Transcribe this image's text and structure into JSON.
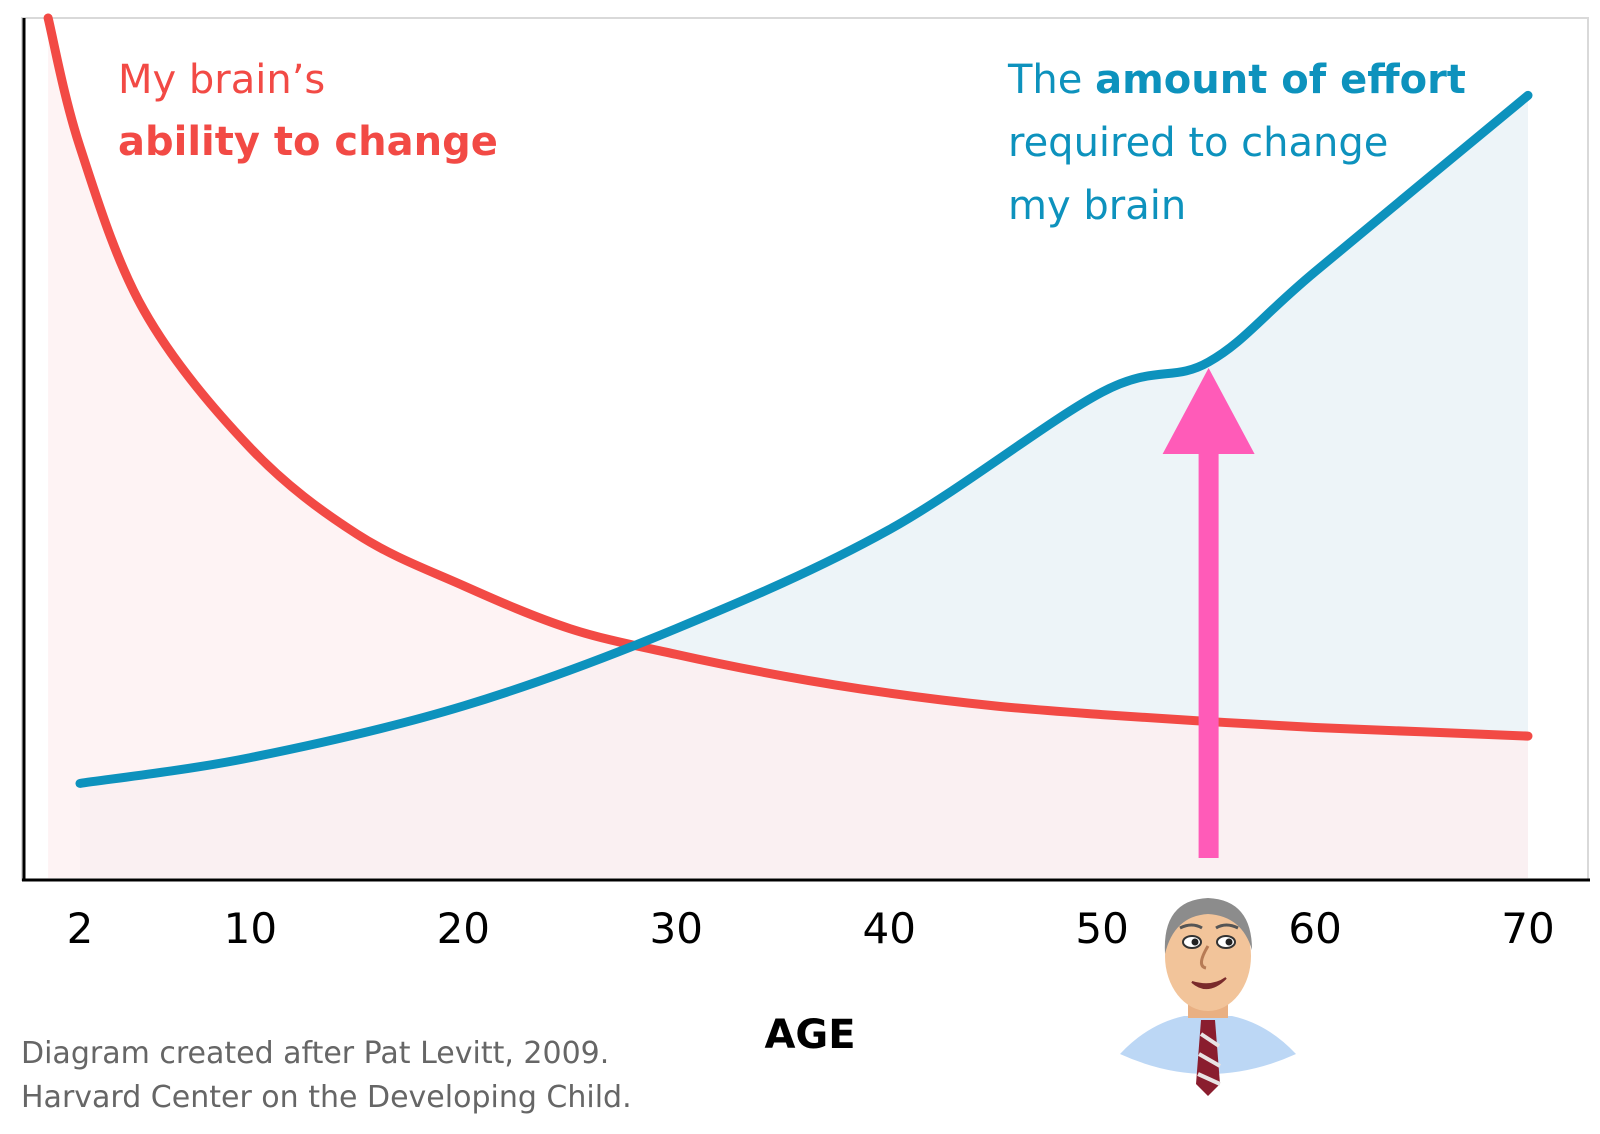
{
  "chart_data": {
    "type": "line",
    "x_ticks": [
      2,
      10,
      20,
      30,
      40,
      50,
      60,
      70
    ],
    "xlabel": "AGE",
    "ylabel": "",
    "grid": false,
    "series": [
      {
        "name": "My brain’s ability to change",
        "color": "#f24a45",
        "fill": "#fdeff0",
        "x": [
          0.5,
          2,
          5,
          10,
          15,
          20,
          25,
          30,
          35,
          40,
          45,
          50,
          55,
          60,
          65,
          70
        ],
        "y": [
          100,
          85,
          66,
          50,
          40,
          34,
          29,
          26,
          23.5,
          21.5,
          20,
          19,
          18.2,
          17.5,
          17,
          16.5
        ]
      },
      {
        "name": "The amount of effort required to change my brain",
        "color": "#0d92bd",
        "fill": "#edf4f8",
        "x": [
          2,
          10,
          20,
          30,
          40,
          50,
          55,
          60,
          70
        ],
        "y": [
          11,
          14,
          20,
          29,
          40.5,
          56.5,
          60,
          70.5,
          91
        ]
      }
    ],
    "annotation": {
      "type": "arrow",
      "color": "#ff5bb8",
      "x": 55
    }
  },
  "labels": {
    "red": {
      "line1": "My brain’s",
      "line2": "ability to change"
    },
    "blue": {
      "pre": "The ",
      "bold": "amount of effort",
      "line2": "required to change",
      "line3": "my brain"
    }
  },
  "credit": {
    "line1": "Diagram created after Pat Levitt, 2009.",
    "line2": "Harvard Center on the Developing Child."
  },
  "colors": {
    "axis": "#000000",
    "frame": "#d9d9d9"
  },
  "icons": {
    "character": "cartoon-man-icon"
  }
}
